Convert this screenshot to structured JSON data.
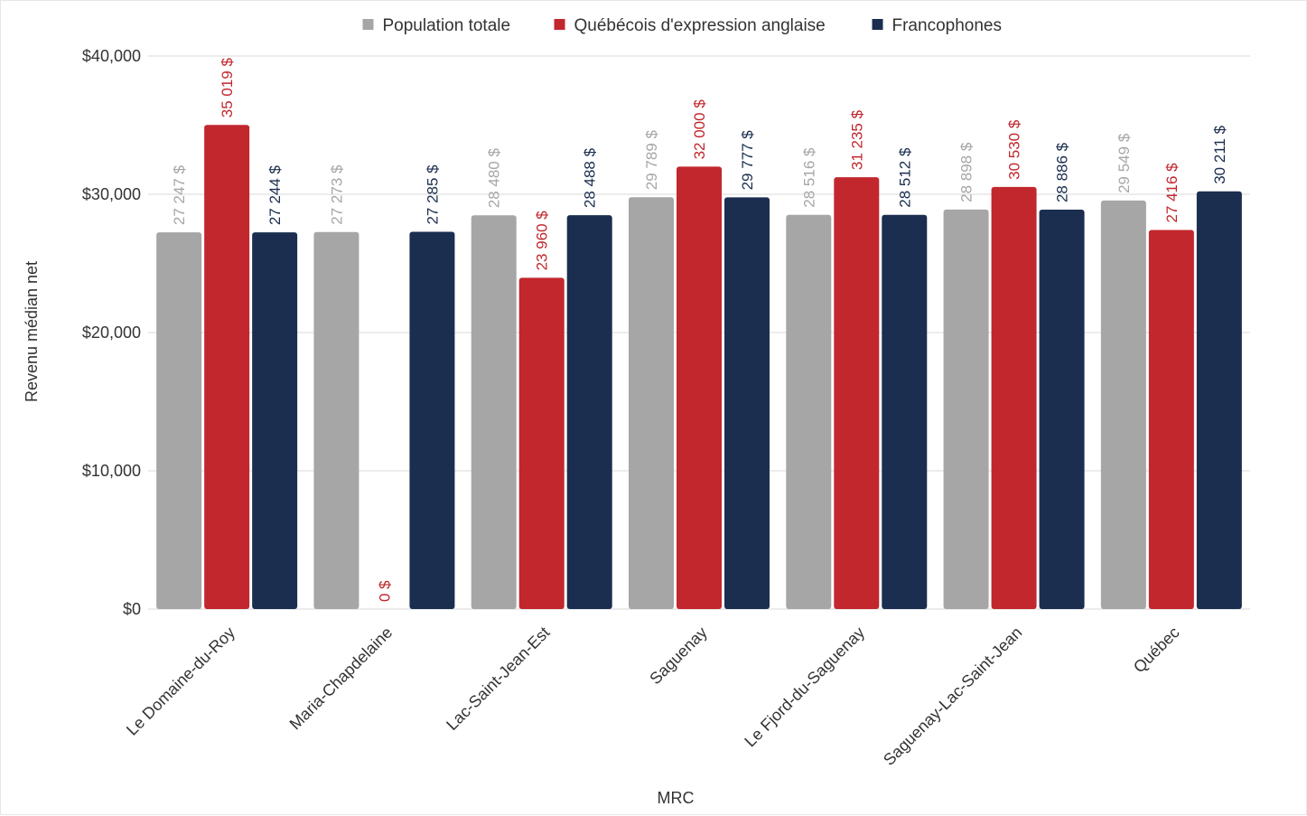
{
  "chart_data": {
    "type": "bar",
    "xlabel": "MRC",
    "ylabel": "Revenu médian net",
    "ylim": [
      0,
      40000
    ],
    "yticks": [
      0,
      10000,
      20000,
      30000,
      40000
    ],
    "ytick_labels": [
      "$0",
      "$10,000",
      "$20,000",
      "$30,000",
      "$40,000"
    ],
    "grid": true,
    "legend_position": "top-center",
    "categories": [
      "Le Domaine-du-Roy",
      "Maria-Chapdelaine",
      "Lac-Saint-Jean-Est",
      "Saguenay",
      "Le Fjord-du-Saguenay",
      "Saguenay-Lac-Saint-Jean",
      "Québec"
    ],
    "series": [
      {
        "name": "Population totale",
        "color": "#a6a6a6",
        "values": [
          27247,
          27273,
          28480,
          29789,
          28516,
          28898,
          29549
        ],
        "labels": [
          "27 247 $",
          "27 273 $",
          "28 480 $",
          "29 789 $",
          "28 516 $",
          "28 898 $",
          "29 549 $"
        ]
      },
      {
        "name": "Québécois d'expression anglaise",
        "color": "#c1272d",
        "values": [
          35019,
          0,
          23960,
          32000,
          31235,
          30530,
          27416
        ],
        "labels": [
          "35 019 $",
          "0 $",
          "23 960 $",
          "32 000 $",
          "31 235 $",
          "30 530 $",
          "27 416 $"
        ]
      },
      {
        "name": "Francophones",
        "color": "#1b2e4f",
        "values": [
          27244,
          27285,
          28488,
          29777,
          28512,
          28886,
          30211
        ],
        "labels": [
          "27 244 $",
          "27 285 $",
          "28 488 $",
          "29 777 $",
          "28 512 $",
          "28 886 $",
          "30 211 $"
        ]
      }
    ]
  }
}
